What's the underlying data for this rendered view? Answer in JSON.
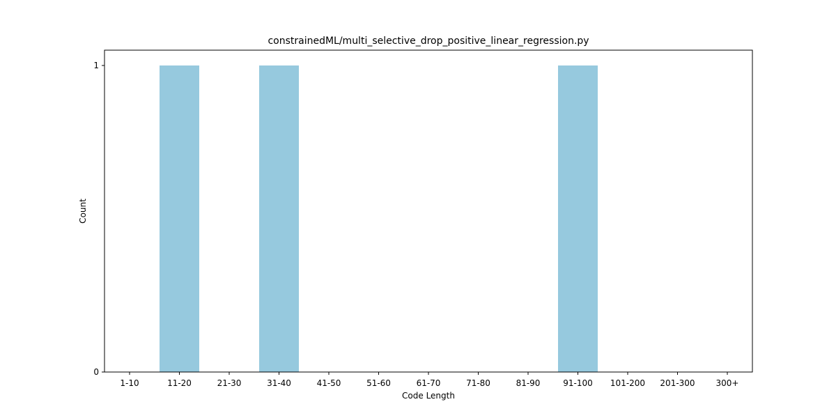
{
  "chart_data": {
    "type": "bar",
    "title": "constrainedML/multi_selective_drop_positive_linear_regression.py",
    "xlabel": "Code Length",
    "ylabel": "Count",
    "categories": [
      "1-10",
      "11-20",
      "21-30",
      "31-40",
      "41-50",
      "51-60",
      "61-70",
      "71-80",
      "81-90",
      "91-100",
      "101-200",
      "201-300",
      "300+"
    ],
    "values": [
      0,
      1,
      0,
      1,
      0,
      0,
      0,
      0,
      0,
      1,
      0,
      0,
      0
    ],
    "ylim": [
      0,
      1
    ],
    "yticks": [
      0,
      1
    ],
    "bar_color": "#96c9de",
    "grid": false,
    "legend": false
  }
}
